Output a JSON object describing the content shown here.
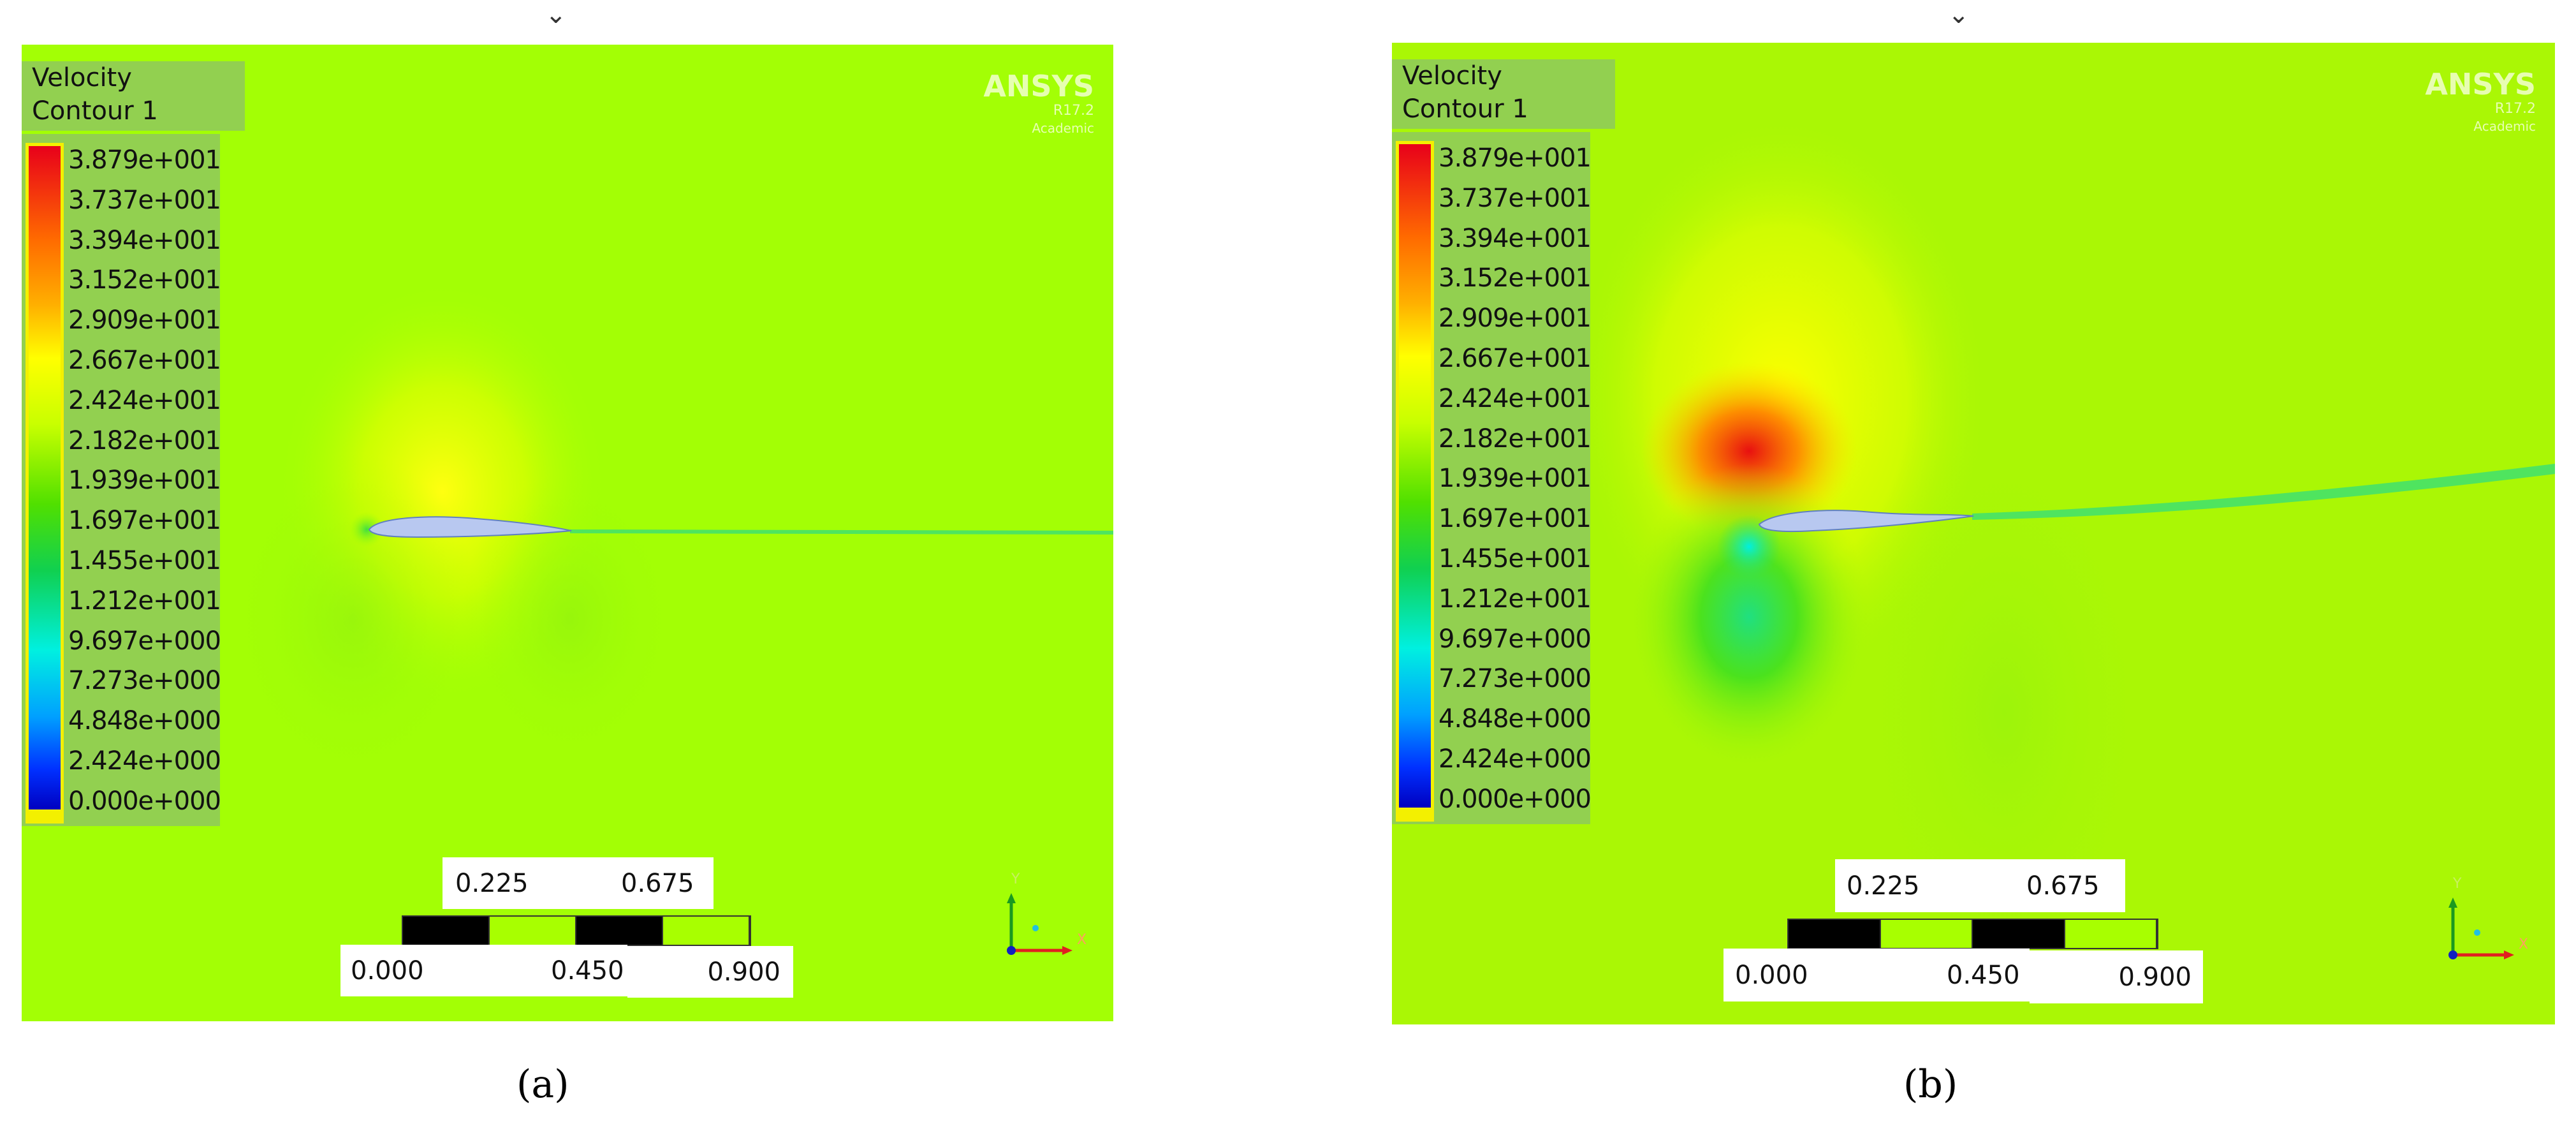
{
  "panels": [
    {
      "caption": "(a)",
      "legend_title_line1": "Velocity",
      "legend_title_line2": "Contour 1",
      "colorbar_labels": [
        "3.879e+001",
        "3.737e+001",
        "3.394e+001",
        "3.152e+001",
        "2.909e+001",
        "2.667e+001",
        "2.424e+001",
        "2.182e+001",
        "1.939e+001",
        "1.697e+001",
        "1.455e+001",
        "1.212e+001",
        "9.697e+000",
        "7.273e+000",
        "4.848e+000",
        "2.424e+000",
        "0.000e+000"
      ],
      "watermark": {
        "brand": "ANSYS",
        "version": "R17.2",
        "edition": "Academic"
      },
      "scale": {
        "top": [
          "0.225",
          "0.675"
        ],
        "bottom": [
          "0.000",
          "0.450"
        ],
        "end": "0.900"
      },
      "axes": {
        "y": "Y",
        "x": "X"
      }
    },
    {
      "caption": "(b)",
      "legend_title_line1": "Velocity",
      "legend_title_line2": "Contour 1",
      "colorbar_labels": [
        "3.879e+001",
        "3.737e+001",
        "3.394e+001",
        "3.152e+001",
        "2.909e+001",
        "2.667e+001",
        "2.424e+001",
        "2.182e+001",
        "1.939e+001",
        "1.697e+001",
        "1.455e+001",
        "1.212e+001",
        "9.697e+000",
        "7.273e+000",
        "4.848e+000",
        "2.424e+000",
        "0.000e+000"
      ],
      "watermark": {
        "brand": "ANSYS",
        "version": "R17.2",
        "edition": "Academic"
      },
      "scale": {
        "top": [
          "0.225",
          "0.675"
        ],
        "bottom": [
          "0.000",
          "0.450"
        ],
        "end": "0.900"
      },
      "axes": {
        "y": "Y",
        "x": "X"
      }
    }
  ],
  "colors": {
    "free_stream_a": "#a3ff05",
    "free_stream_b": "#aaf705",
    "legend_bg": "#92d050",
    "airfoil": "#b8c8f0"
  }
}
